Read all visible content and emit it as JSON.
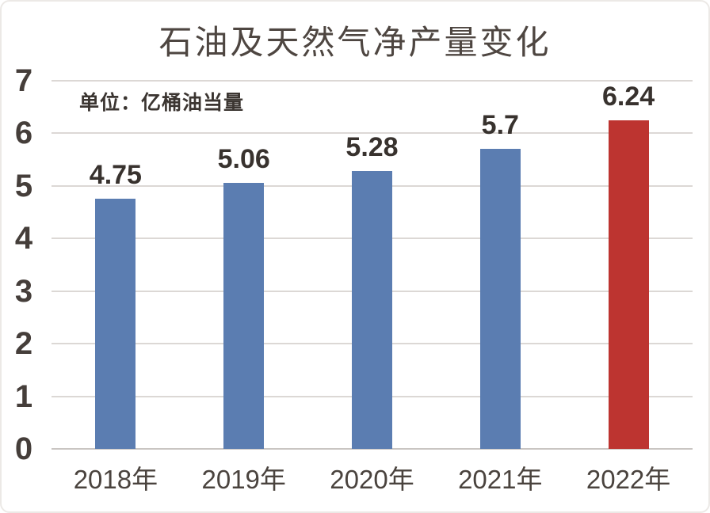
{
  "chart_data": {
    "type": "bar",
    "title": "石油及天然气净产量变化",
    "unit_label": "单位：亿桶油当量",
    "categories": [
      "2018年",
      "2019年",
      "2020年",
      "2021年",
      "2022年"
    ],
    "values": [
      4.75,
      5.06,
      5.28,
      5.7,
      6.24
    ],
    "value_labels": [
      "4.75",
      "5.06",
      "5.28",
      "5.7",
      "6.24"
    ],
    "bar_colors": [
      "#5b7db1",
      "#5b7db1",
      "#5b7db1",
      "#5b7db1",
      "#bd3430"
    ],
    "ylim": [
      0,
      7
    ],
    "ytick_step": 1,
    "ytick_labels": [
      "0",
      "1",
      "2",
      "3",
      "4",
      "5",
      "6",
      "7"
    ],
    "grid": true,
    "legend": "none",
    "colors": {
      "bar_blue": "#5b7db1",
      "bar_red": "#bd3430",
      "gridline": "#dcd8d5",
      "baseline": "#c9c5c2",
      "text_dark": "#38322e",
      "title_text": "#4e4641"
    }
  }
}
